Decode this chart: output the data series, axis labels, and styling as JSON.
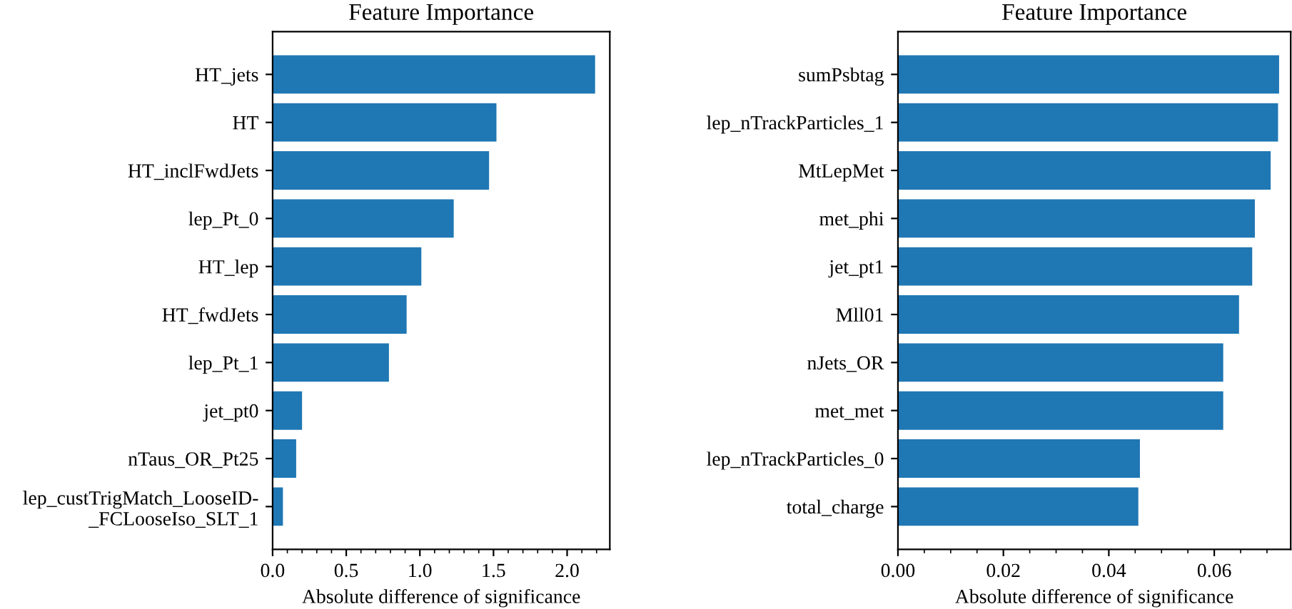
{
  "chart_data": [
    {
      "type": "bar",
      "orientation": "horizontal",
      "title": "Feature Importance",
      "xlabel": "Absolute difference of significance",
      "categories": [
        "HT_jets",
        "HT",
        "HT_inclFwdJets",
        "lep_Pt_0",
        "HT_lep",
        "HT_fwdJets",
        "lep_Pt_1",
        "jet_pt0",
        "nTaus_OR_Pt25",
        "lep_custTrigMatch_LooseID-\n_FCLooseIso_SLT_1"
      ],
      "values": [
        2.19,
        1.52,
        1.47,
        1.23,
        1.01,
        0.91,
        0.79,
        0.2,
        0.16,
        0.07
      ],
      "color": "#1f77b4",
      "xlim": [
        0,
        2.29
      ],
      "xticks": [
        {
          "value": 0,
          "label": "0.0"
        },
        0.5,
        {
          "value": 1,
          "label": "1.0"
        },
        1.5,
        {
          "value": 2,
          "label": "2.0"
        }
      ],
      "grid": false,
      "legend": false
    },
    {
      "type": "bar",
      "orientation": "horizontal",
      "title": "Feature Importance",
      "xlabel": "Absolute difference of significance",
      "categories": [
        "sumPsbtag",
        "lep_nTrackParticles_1",
        "MtLepMet",
        "met_phi",
        "jet_pt1",
        "Mll01",
        "nJets_OR",
        "met_met",
        "lep_nTrackParticles_0",
        "total_charge"
      ],
      "values": [
        0.0723,
        0.0721,
        0.0707,
        0.0677,
        0.0672,
        0.0647,
        0.0617,
        0.0617,
        0.0459,
        0.0456
      ],
      "color": "#1f77b4",
      "xlim": [
        0,
        0.0745
      ],
      "xticks": [
        {
          "value": 0,
          "label": "0.00"
        },
        {
          "value": 0.02,
          "label": "0.02"
        },
        {
          "value": 0.04,
          "label": "0.04"
        },
        {
          "value": 0.06,
          "label": "0.06"
        }
      ],
      "grid": false,
      "legend": false
    }
  ]
}
